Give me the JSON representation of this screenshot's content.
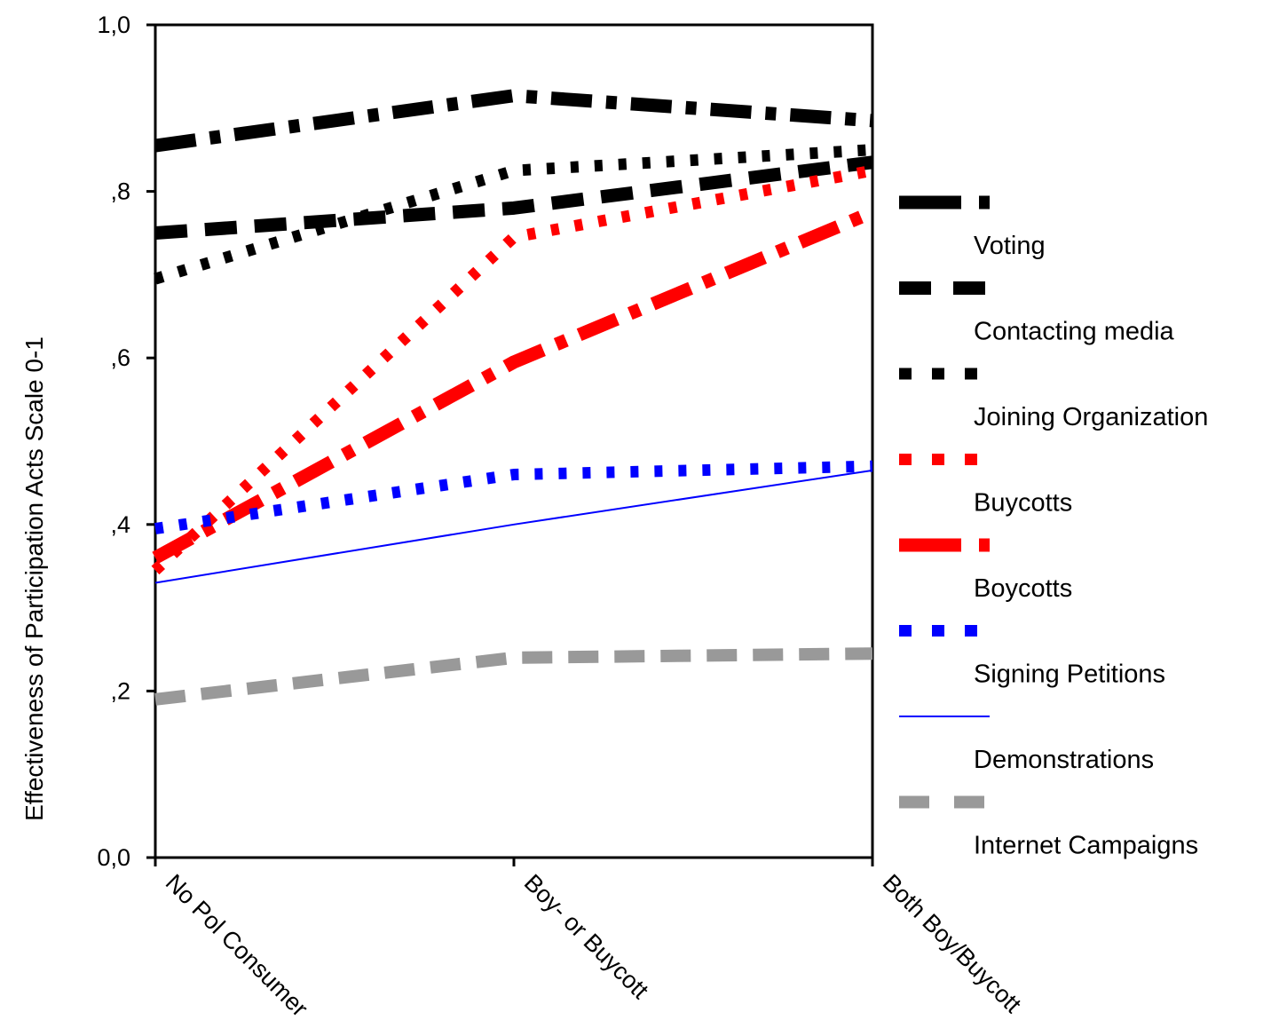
{
  "chart_data": {
    "type": "line",
    "ylabel": "Effectiveness of Participation Acts Scale 0-1",
    "xlabel": "",
    "ylim": [
      0,
      1
    ],
    "ytick_labels": [
      "0,0",
      ",2",
      ",4",
      ",6",
      ",8",
      "1,0"
    ],
    "yticks": [
      0,
      0.2,
      0.4,
      0.6,
      0.8,
      1.0
    ],
    "categories": [
      "No Pol Consumer",
      "Boy- or Buycott",
      "Both Boy/Buycott"
    ],
    "grid": false,
    "legend_position": "right",
    "series": [
      {
        "name": "Voting",
        "values": [
          0.855,
          0.915,
          0.885
        ],
        "color": "#000000",
        "style": "dashdot"
      },
      {
        "name": "Contacting media",
        "values": [
          0.75,
          0.78,
          0.835
        ],
        "color": "#000000",
        "style": "longdash"
      },
      {
        "name": "Joining Organization",
        "values": [
          0.695,
          0.825,
          0.85
        ],
        "color": "#000000",
        "style": "dot"
      },
      {
        "name": "Buycotts",
        "values": [
          0.345,
          0.745,
          0.825
        ],
        "color": "#ff0000",
        "style": "dot"
      },
      {
        "name": "Boycotts",
        "values": [
          0.36,
          0.595,
          0.775
        ],
        "color": "#ff0000",
        "style": "dashdot"
      },
      {
        "name": "Signing Petitions",
        "values": [
          0.395,
          0.46,
          0.47
        ],
        "color": "#0000ff",
        "style": "dot"
      },
      {
        "name": "Demonstrations",
        "values": [
          0.33,
          0.4,
          0.465
        ],
        "color": "#0000ff",
        "style": "solid"
      },
      {
        "name": "Internet Campaigns",
        "values": [
          0.19,
          0.24,
          0.245
        ],
        "color": "#999999",
        "style": "dash"
      }
    ]
  }
}
